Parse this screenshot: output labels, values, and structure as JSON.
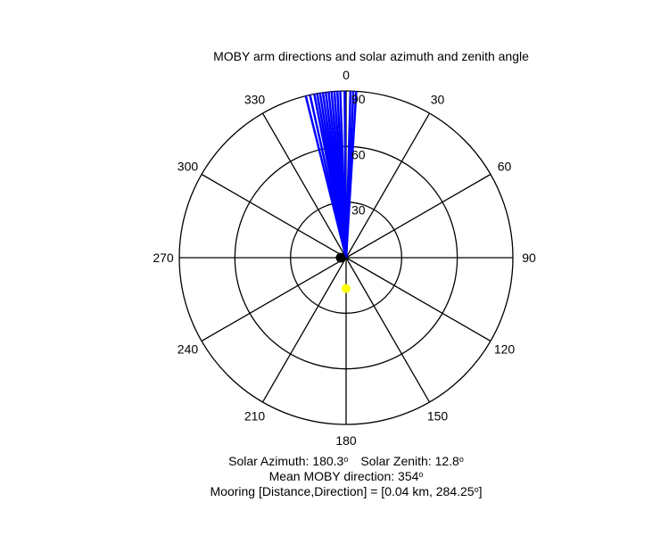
{
  "chart_data": {
    "type": "polar",
    "title": "MOBY arm directions and solar azimuth and zenith angle",
    "angular_ticks": [
      "0",
      "30",
      "60",
      "90",
      "120",
      "150",
      "180",
      "210",
      "240",
      "270",
      "300",
      "330"
    ],
    "radial_ticks": [
      "30",
      "60",
      "90"
    ],
    "r_max": 90,
    "arm_directions_deg": [
      346.0,
      347.5,
      349.0,
      350.0,
      351.0,
      352.0,
      353.0,
      354.0,
      355.0,
      356.0,
      357.0,
      358.0,
      359.5,
      1.5,
      2.5,
      3.5
    ],
    "arm_color": "#0000ff",
    "solar": {
      "azimuth": 180.3,
      "zenith": 12.8,
      "color": "#ffff00"
    },
    "center_marker_color": "#000000"
  },
  "footer": {
    "solar_azimuth_label": "Solar Azimuth: 180.3",
    "solar_zenith_label": "Solar Zenith: 12.8",
    "mean_direction_label": "Mean MOBY direction: 354",
    "mooring_label": "Mooring [Distance,Direction] = [0.04 km, 284.25",
    "degree_symbol": "o",
    "closing_bracket": "]"
  }
}
